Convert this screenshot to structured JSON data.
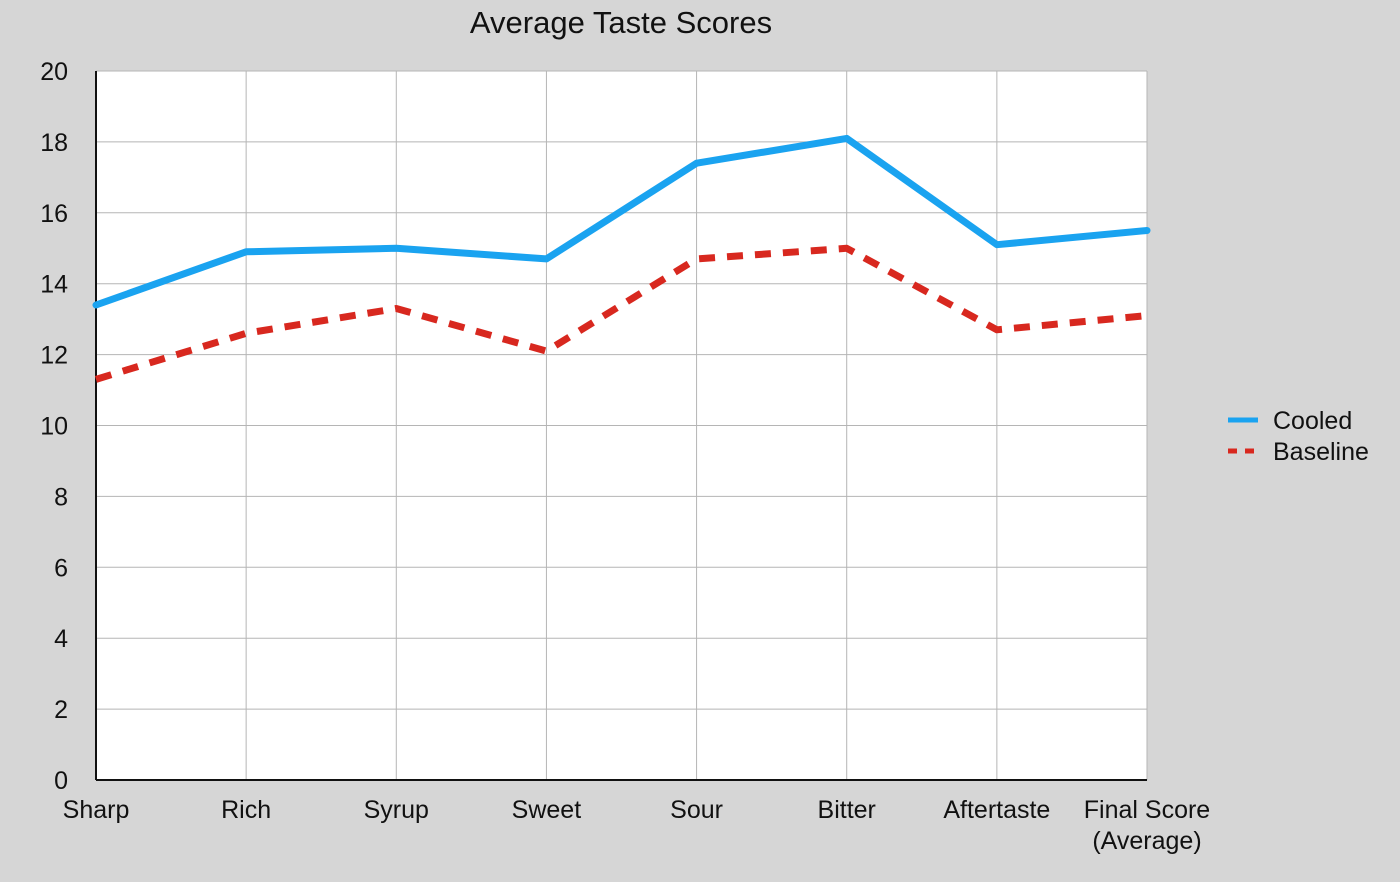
{
  "chart_data": {
    "type": "line",
    "title": "Average Taste Scores",
    "xlabel": "",
    "ylabel": "",
    "categories": [
      [
        "Sharp"
      ],
      [
        "Rich"
      ],
      [
        "Syrup"
      ],
      [
        "Sweet"
      ],
      [
        "Sour"
      ],
      [
        "Bitter"
      ],
      [
        "Aftertaste"
      ],
      [
        "Final Score",
        "(Average)"
      ]
    ],
    "ylim": [
      0,
      20
    ],
    "yticks": [
      "0",
      "2",
      "4",
      "6",
      "8",
      "10",
      "12",
      "14",
      "16",
      "18",
      "20"
    ],
    "grid": true,
    "legend_position": "right",
    "series": [
      {
        "name": "Cooled",
        "color": "#1aa3f0",
        "style": "solid",
        "values": [
          13.4,
          14.9,
          15.0,
          14.7,
          17.4,
          18.1,
          15.1,
          15.5
        ]
      },
      {
        "name": "Baseline",
        "color": "#d8281f",
        "style": "dashed",
        "values": [
          11.3,
          12.6,
          13.3,
          12.1,
          14.7,
          15.0,
          12.7,
          13.1
        ]
      }
    ]
  }
}
